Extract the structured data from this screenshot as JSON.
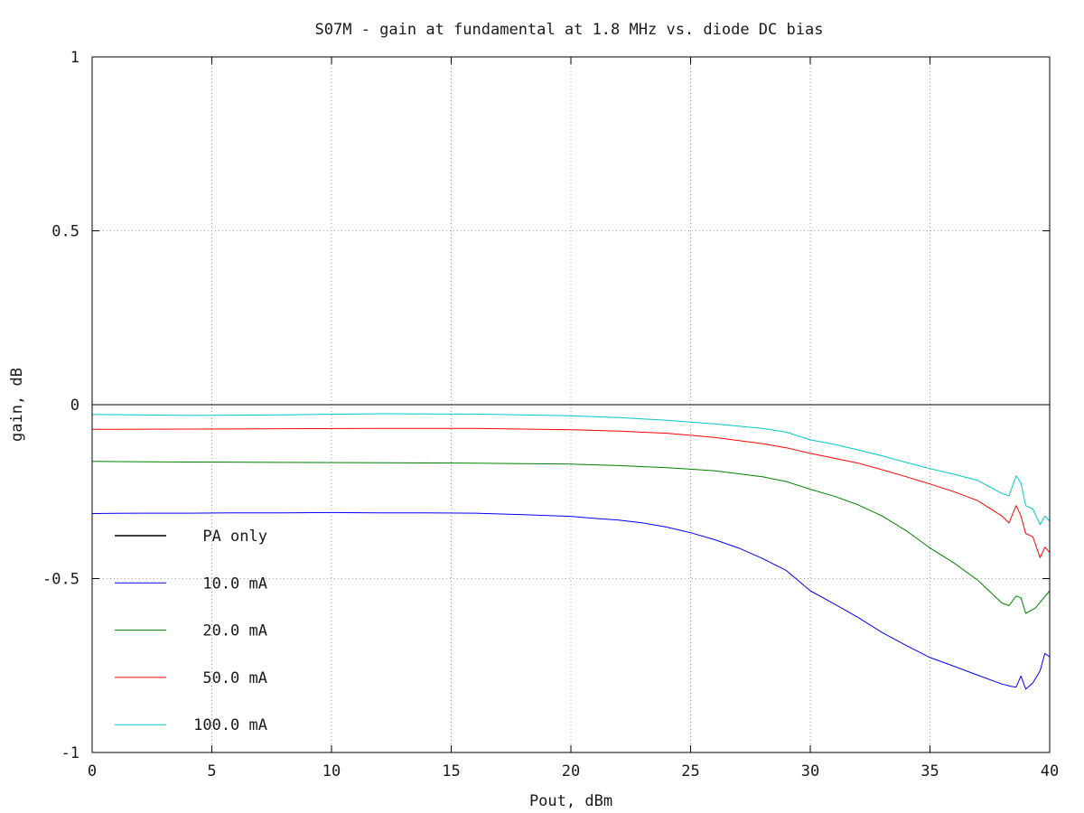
{
  "chart_data": {
    "type": "line",
    "title": "S07M - gain at fundamental at 1.8 MHz vs. diode DC bias",
    "xlabel": "Pout, dBm",
    "ylabel": "gain, dB",
    "xlim": [
      0,
      40
    ],
    "ylim": [
      -1,
      1
    ],
    "xticks": [
      0,
      5,
      10,
      15,
      20,
      25,
      30,
      35,
      40
    ],
    "yticks": [
      -1,
      -0.5,
      0,
      0.5,
      1
    ],
    "xtick_labels": [
      "0",
      "5",
      "10",
      "15",
      "20",
      "25",
      "30",
      "35",
      "40"
    ],
    "ytick_labels": [
      "-1",
      "-0.5",
      "0",
      "0.5",
      "1"
    ],
    "grid": true,
    "legend_position": "bottom-left",
    "series": [
      {
        "name": "PA only",
        "color": "#000000",
        "points": [
          [
            0,
            0
          ],
          [
            40,
            0
          ]
        ]
      },
      {
        "name": "10.0 mA",
        "color": "#0000ff",
        "points": [
          [
            0,
            -0.313
          ],
          [
            2,
            -0.312
          ],
          [
            4,
            -0.312
          ],
          [
            6,
            -0.311
          ],
          [
            8,
            -0.311
          ],
          [
            10,
            -0.31
          ],
          [
            12,
            -0.311
          ],
          [
            14,
            -0.311
          ],
          [
            16,
            -0.312
          ],
          [
            18,
            -0.316
          ],
          [
            20,
            -0.321
          ],
          [
            21,
            -0.327
          ],
          [
            22,
            -0.332
          ],
          [
            23,
            -0.34
          ],
          [
            24,
            -0.352
          ],
          [
            25,
            -0.368
          ],
          [
            26,
            -0.388
          ],
          [
            27,
            -0.412
          ],
          [
            28,
            -0.442
          ],
          [
            29,
            -0.477
          ],
          [
            30,
            -0.535
          ],
          [
            31,
            -0.573
          ],
          [
            32,
            -0.612
          ],
          [
            33,
            -0.655
          ],
          [
            34,
            -0.692
          ],
          [
            35,
            -0.727
          ],
          [
            36,
            -0.752
          ],
          [
            37,
            -0.778
          ],
          [
            38,
            -0.803
          ],
          [
            38.4,
            -0.81
          ],
          [
            38.6,
            -0.812
          ],
          [
            38.8,
            -0.78
          ],
          [
            39,
            -0.818
          ],
          [
            39.3,
            -0.8
          ],
          [
            39.6,
            -0.765
          ],
          [
            39.8,
            -0.715
          ],
          [
            40,
            -0.725
          ]
        ]
      },
      {
        "name": "20.0 mA",
        "color": "#008000",
        "points": [
          [
            0,
            -0.163
          ],
          [
            4,
            -0.165
          ],
          [
            8,
            -0.166
          ],
          [
            12,
            -0.167
          ],
          [
            16,
            -0.168
          ],
          [
            20,
            -0.171
          ],
          [
            22,
            -0.175
          ],
          [
            24,
            -0.181
          ],
          [
            26,
            -0.19
          ],
          [
            28,
            -0.207
          ],
          [
            29,
            -0.221
          ],
          [
            30,
            -0.243
          ],
          [
            31,
            -0.263
          ],
          [
            32,
            -0.288
          ],
          [
            33,
            -0.32
          ],
          [
            34,
            -0.362
          ],
          [
            35,
            -0.412
          ],
          [
            36,
            -0.455
          ],
          [
            37,
            -0.505
          ],
          [
            38,
            -0.57
          ],
          [
            38.3,
            -0.578
          ],
          [
            38.6,
            -0.55
          ],
          [
            38.8,
            -0.555
          ],
          [
            39,
            -0.6
          ],
          [
            39.4,
            -0.585
          ],
          [
            40,
            -0.535
          ]
        ]
      },
      {
        "name": "50.0 mA",
        "color": "#ff0000",
        "points": [
          [
            0,
            -0.071
          ],
          [
            4,
            -0.07
          ],
          [
            8,
            -0.069
          ],
          [
            12,
            -0.068
          ],
          [
            16,
            -0.068
          ],
          [
            20,
            -0.072
          ],
          [
            22,
            -0.076
          ],
          [
            24,
            -0.082
          ],
          [
            26,
            -0.094
          ],
          [
            28,
            -0.112
          ],
          [
            29,
            -0.124
          ],
          [
            30,
            -0.14
          ],
          [
            31,
            -0.154
          ],
          [
            32,
            -0.168
          ],
          [
            33,
            -0.187
          ],
          [
            34,
            -0.207
          ],
          [
            35,
            -0.228
          ],
          [
            36,
            -0.25
          ],
          [
            37,
            -0.276
          ],
          [
            38,
            -0.32
          ],
          [
            38.3,
            -0.34
          ],
          [
            38.6,
            -0.29
          ],
          [
            38.8,
            -0.32
          ],
          [
            39,
            -0.37
          ],
          [
            39.3,
            -0.38
          ],
          [
            39.6,
            -0.44
          ],
          [
            39.8,
            -0.41
          ],
          [
            40,
            -0.425
          ]
        ]
      },
      {
        "name": "100.0 mA",
        "color": "#00c8c8",
        "points": [
          [
            0,
            -0.028
          ],
          [
            4,
            -0.031
          ],
          [
            8,
            -0.029
          ],
          [
            12,
            -0.026
          ],
          [
            16,
            -0.027
          ],
          [
            20,
            -0.032
          ],
          [
            22,
            -0.037
          ],
          [
            24,
            -0.045
          ],
          [
            26,
            -0.055
          ],
          [
            28,
            -0.068
          ],
          [
            29,
            -0.079
          ],
          [
            30,
            -0.101
          ],
          [
            31,
            -0.114
          ],
          [
            32,
            -0.13
          ],
          [
            33,
            -0.147
          ],
          [
            34,
            -0.166
          ],
          [
            35,
            -0.184
          ],
          [
            36,
            -0.2
          ],
          [
            37,
            -0.218
          ],
          [
            38,
            -0.255
          ],
          [
            38.3,
            -0.262
          ],
          [
            38.6,
            -0.205
          ],
          [
            38.8,
            -0.225
          ],
          [
            39,
            -0.29
          ],
          [
            39.3,
            -0.3
          ],
          [
            39.6,
            -0.345
          ],
          [
            39.8,
            -0.32
          ],
          [
            40,
            -0.335
          ]
        ]
      }
    ]
  }
}
